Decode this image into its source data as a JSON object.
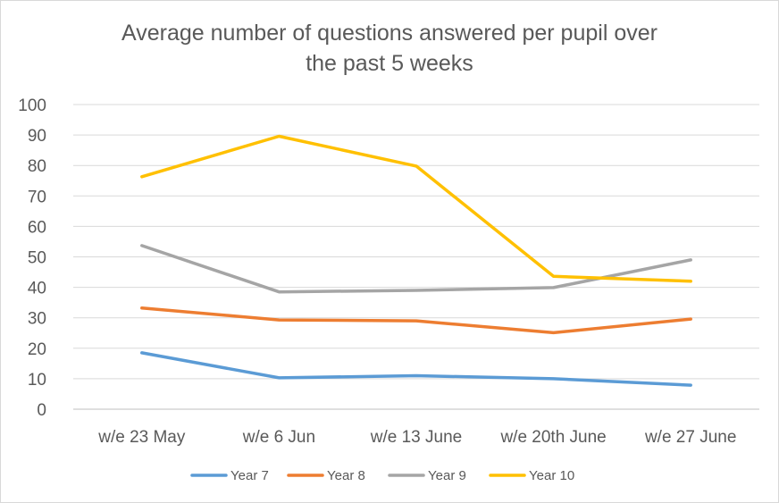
{
  "chart_data": {
    "type": "line",
    "title_line1": "Average number of questions answered per pupil over",
    "title_line2": "the past 5 weeks",
    "categories": [
      "w/e 23 May",
      "w/e 6 Jun",
      "w/e 13 June",
      "w/e 20th June",
      "w/e 27 June"
    ],
    "ylim": [
      0,
      100
    ],
    "yticks": [
      0,
      10,
      20,
      30,
      40,
      50,
      60,
      70,
      80,
      90,
      100
    ],
    "grid": true,
    "legend_position": "bottom",
    "series": [
      {
        "name": "Year 7",
        "color": "#5b9bd5",
        "values": [
          18.5,
          10.3,
          11,
          10,
          7.9
        ]
      },
      {
        "name": "Year 8",
        "color": "#ed7d31",
        "values": [
          33.2,
          29.3,
          29,
          25.1,
          29.6
        ]
      },
      {
        "name": "Year 9",
        "color": "#a5a5a5",
        "values": [
          53.7,
          38.5,
          39,
          39.9,
          49
        ]
      },
      {
        "name": "Year 10",
        "color": "#ffc000",
        "values": [
          76.3,
          89.6,
          79.8,
          43.6,
          42
        ]
      }
    ]
  }
}
